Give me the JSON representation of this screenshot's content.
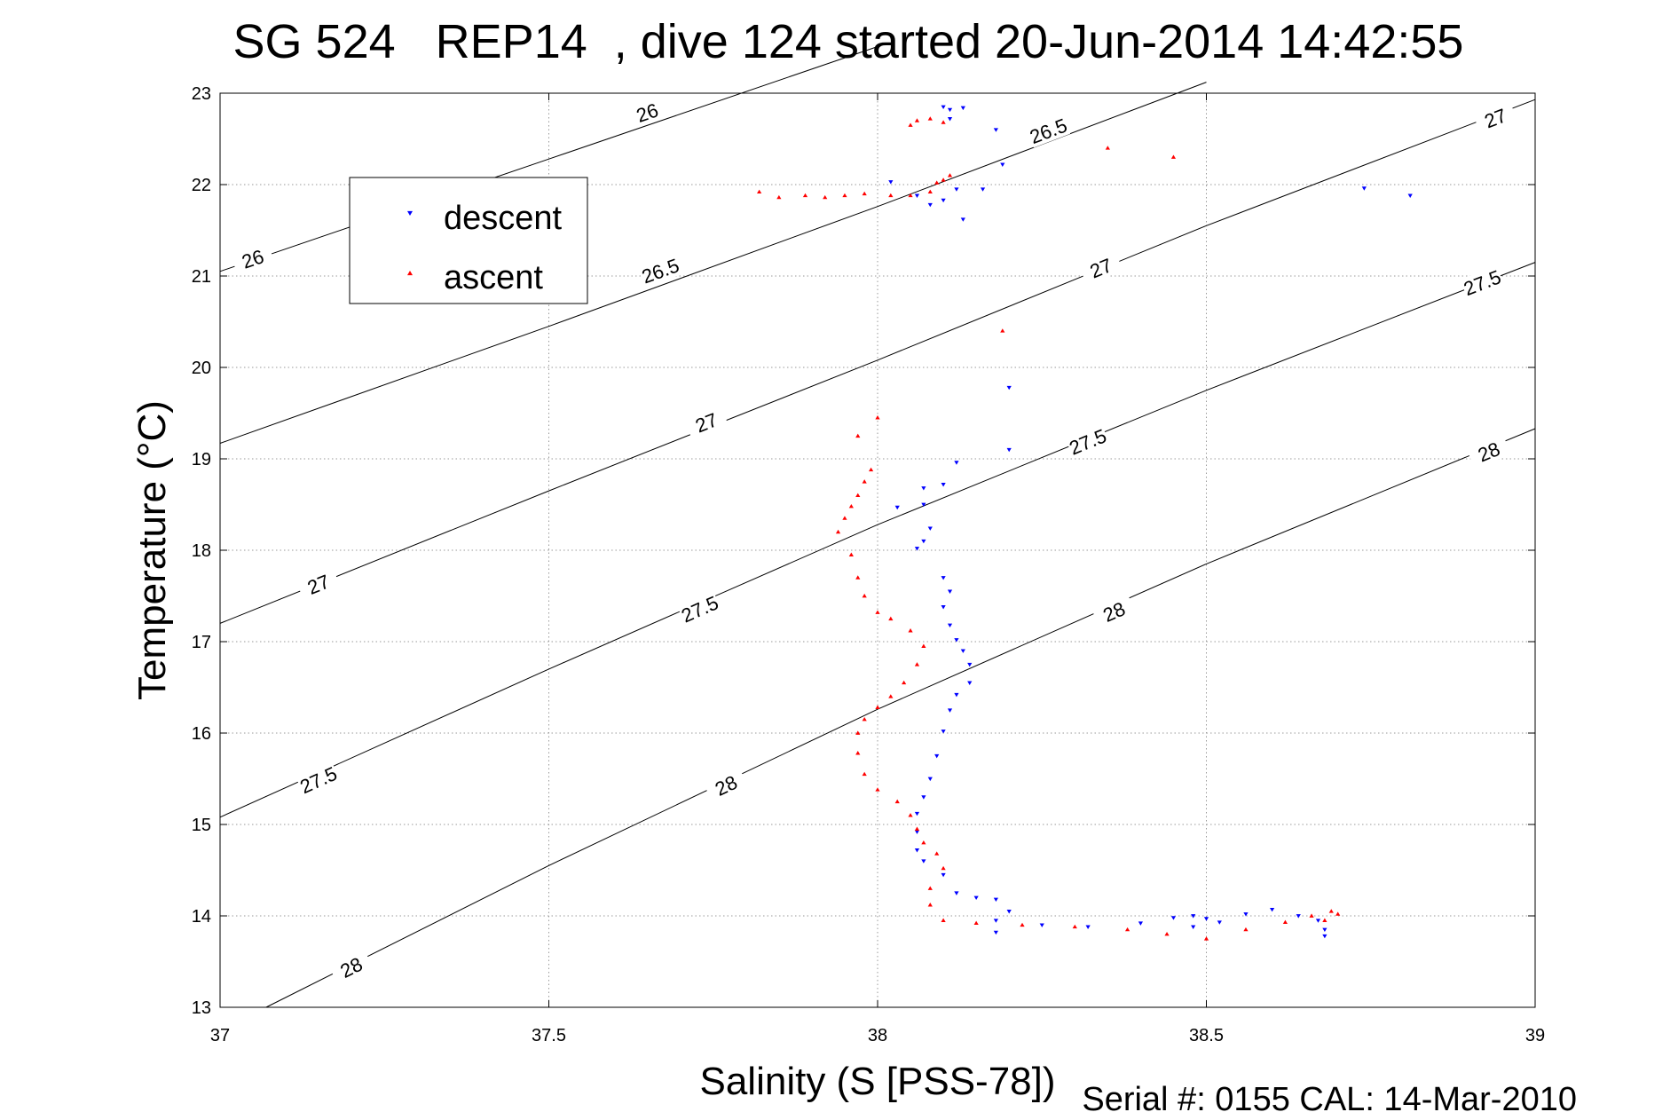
{
  "chart_data": {
    "type": "scatter",
    "title": "SG 524   REP14  , dive 124 started 20-Jun-2014 14:42:55",
    "xlabel": "Salinity (S [PSS-78])",
    "ylabel": "Temperature (°C)",
    "footer": "Serial #: 0155  CAL: 14-Mar-2010",
    "xlim": [
      37,
      39
    ],
    "ylim": [
      13,
      23
    ],
    "xticks": [
      "37",
      "37.5",
      "38",
      "38.5",
      "39"
    ],
    "yticks": [
      "13",
      "14",
      "15",
      "16",
      "17",
      "18",
      "19",
      "20",
      "21",
      "22",
      "23"
    ],
    "grid": true,
    "legend": {
      "placement": "top-left"
    },
    "colors": {
      "descent": "#0000ff",
      "ascent": "#ff0000",
      "isopycnal": "#000000"
    },
    "isopycnals": [
      {
        "label": "26",
        "line": [
          [
            37,
            21.05
          ],
          [
            37.5,
            22.28
          ],
          [
            38,
            23.51
          ]
        ],
        "label_points": [
          [
            37.05,
            21.18
          ],
          [
            37.65,
            22.78
          ]
        ]
      },
      {
        "label": "26.5",
        "line": [
          [
            37,
            19.17
          ],
          [
            37.5,
            20.45
          ],
          [
            38,
            21.76
          ],
          [
            38.5,
            23.12
          ]
        ],
        "label_points": [
          [
            37.67,
            21.05
          ],
          [
            38.26,
            22.58
          ]
        ]
      },
      {
        "label": "27",
        "line": [
          [
            37,
            17.2
          ],
          [
            37.5,
            18.65
          ],
          [
            38,
            20.08
          ],
          [
            38.5,
            21.55
          ],
          [
            39,
            22.93
          ]
        ],
        "label_points": [
          [
            37.15,
            17.62
          ],
          [
            37.74,
            19.39
          ],
          [
            38.34,
            21.08
          ],
          [
            38.94,
            22.72
          ]
        ]
      },
      {
        "label": "27.5",
        "line": [
          [
            37,
            15.08
          ],
          [
            37.5,
            16.7
          ],
          [
            38,
            18.28
          ],
          [
            38.5,
            19.75
          ],
          [
            39,
            21.15
          ]
        ],
        "label_points": [
          [
            37.15,
            15.48
          ],
          [
            37.73,
            17.35
          ],
          [
            38.32,
            19.18
          ],
          [
            38.92,
            20.92
          ]
        ]
      },
      {
        "label": "28",
        "line": [
          [
            37.07,
            13
          ],
          [
            37.5,
            14.55
          ],
          [
            38,
            16.26
          ],
          [
            38.5,
            17.85
          ],
          [
            39,
            19.33
          ]
        ],
        "label_points": [
          [
            37.2,
            13.43
          ],
          [
            37.77,
            15.42
          ],
          [
            38.36,
            17.32
          ],
          [
            38.93,
            19.07
          ]
        ]
      }
    ],
    "series": [
      {
        "name": "descent",
        "marker": "triangle-down",
        "points": [
          [
            38.1,
            22.85
          ],
          [
            38.11,
            22.82
          ],
          [
            38.13,
            22.84
          ],
          [
            38.11,
            22.72
          ],
          [
            38.18,
            22.6
          ],
          [
            38.19,
            22.22
          ],
          [
            38.02,
            22.03
          ],
          [
            38.06,
            21.88
          ],
          [
            38.08,
            21.78
          ],
          [
            38.1,
            21.83
          ],
          [
            38.12,
            21.95
          ],
          [
            38.16,
            21.95
          ],
          [
            38.13,
            21.62
          ],
          [
            38.74,
            21.96
          ],
          [
            38.81,
            21.88
          ],
          [
            38.2,
            19.78
          ],
          [
            38.2,
            19.1
          ],
          [
            38.12,
            18.96
          ],
          [
            38.07,
            18.68
          ],
          [
            38.07,
            18.5
          ],
          [
            38.03,
            18.47
          ],
          [
            38.1,
            18.72
          ],
          [
            38.08,
            18.24
          ],
          [
            38.07,
            18.1
          ],
          [
            38.06,
            18.02
          ],
          [
            38.1,
            17.7
          ],
          [
            38.11,
            17.55
          ],
          [
            38.1,
            17.38
          ],
          [
            38.11,
            17.18
          ],
          [
            38.12,
            17.02
          ],
          [
            38.13,
            16.9
          ],
          [
            38.14,
            16.75
          ],
          [
            38.14,
            16.55
          ],
          [
            38.12,
            16.42
          ],
          [
            38.11,
            16.25
          ],
          [
            38.1,
            16.02
          ],
          [
            38.09,
            15.75
          ],
          [
            38.08,
            15.5
          ],
          [
            38.07,
            15.3
          ],
          [
            38.06,
            15.12
          ],
          [
            38.06,
            14.92
          ],
          [
            38.06,
            14.72
          ],
          [
            38.07,
            14.6
          ],
          [
            38.1,
            14.45
          ],
          [
            38.12,
            14.25
          ],
          [
            38.15,
            14.2
          ],
          [
            38.18,
            14.18
          ],
          [
            38.2,
            14.05
          ],
          [
            38.18,
            13.95
          ],
          [
            38.18,
            13.82
          ],
          [
            38.25,
            13.9
          ],
          [
            38.32,
            13.88
          ],
          [
            38.4,
            13.92
          ],
          [
            38.45,
            13.98
          ],
          [
            38.48,
            14.0
          ],
          [
            38.5,
            13.97
          ],
          [
            38.48,
            13.88
          ],
          [
            38.52,
            13.93
          ],
          [
            38.56,
            14.02
          ],
          [
            38.6,
            14.07
          ],
          [
            38.64,
            14.0
          ],
          [
            38.67,
            13.95
          ],
          [
            38.68,
            13.85
          ],
          [
            38.68,
            13.78
          ]
        ]
      },
      {
        "name": "ascent",
        "marker": "triangle-up",
        "points": [
          [
            38.05,
            22.65
          ],
          [
            38.06,
            22.7
          ],
          [
            38.08,
            22.72
          ],
          [
            38.1,
            22.68
          ],
          [
            38.35,
            22.4
          ],
          [
            38.45,
            22.3
          ],
          [
            37.82,
            21.92
          ],
          [
            37.85,
            21.86
          ],
          [
            37.89,
            21.88
          ],
          [
            37.92,
            21.86
          ],
          [
            37.95,
            21.88
          ],
          [
            37.98,
            21.9
          ],
          [
            38.02,
            21.88
          ],
          [
            38.05,
            21.88
          ],
          [
            38.08,
            21.92
          ],
          [
            38.09,
            22.02
          ],
          [
            38.1,
            22.05
          ],
          [
            38.11,
            22.1
          ],
          [
            38.19,
            20.4
          ],
          [
            37.97,
            19.25
          ],
          [
            38.0,
            19.45
          ],
          [
            37.99,
            18.88
          ],
          [
            37.98,
            18.75
          ],
          [
            37.97,
            18.6
          ],
          [
            37.96,
            18.48
          ],
          [
            37.95,
            18.35
          ],
          [
            37.94,
            18.2
          ],
          [
            37.96,
            17.95
          ],
          [
            37.97,
            17.7
          ],
          [
            37.98,
            17.5
          ],
          [
            38.0,
            17.32
          ],
          [
            38.02,
            17.25
          ],
          [
            38.05,
            17.12
          ],
          [
            38.07,
            16.95
          ],
          [
            38.06,
            16.75
          ],
          [
            38.04,
            16.55
          ],
          [
            38.02,
            16.4
          ],
          [
            38.0,
            16.28
          ],
          [
            37.98,
            16.15
          ],
          [
            37.97,
            16.0
          ],
          [
            37.97,
            15.78
          ],
          [
            37.98,
            15.55
          ],
          [
            38.0,
            15.38
          ],
          [
            38.03,
            15.25
          ],
          [
            38.05,
            15.1
          ],
          [
            38.06,
            14.95
          ],
          [
            38.07,
            14.8
          ],
          [
            38.09,
            14.68
          ],
          [
            38.1,
            14.52
          ],
          [
            38.08,
            14.3
          ],
          [
            38.08,
            14.12
          ],
          [
            38.1,
            13.95
          ],
          [
            38.15,
            13.92
          ],
          [
            38.22,
            13.9
          ],
          [
            38.3,
            13.88
          ],
          [
            38.38,
            13.85
          ],
          [
            38.44,
            13.8
          ],
          [
            38.5,
            13.75
          ],
          [
            38.56,
            13.85
          ],
          [
            38.62,
            13.93
          ],
          [
            38.66,
            14.0
          ],
          [
            38.69,
            14.05
          ],
          [
            38.7,
            14.02
          ],
          [
            38.68,
            13.95
          ]
        ]
      }
    ]
  }
}
